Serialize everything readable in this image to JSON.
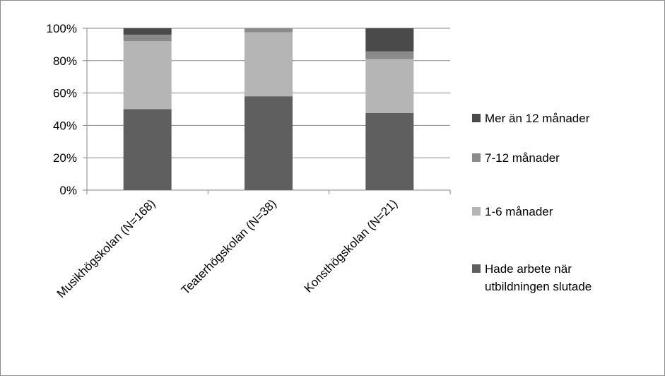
{
  "chart_data": {
    "type": "bar",
    "stacked": true,
    "percent": true,
    "categories": [
      "Musikhögskolan (N=168)",
      "Teaterhögskolan (N=38)",
      "Konsthögskolan (N=21)"
    ],
    "series": [
      {
        "name": "Hade arbete när utbildningen slutade",
        "legend_lines": [
          "Hade arbete när",
          "utbildningen slutade"
        ],
        "values": [
          50,
          58,
          47.6
        ],
        "color": "#5f5f5f"
      },
      {
        "name": "1-6 månader",
        "legend_lines": [
          "1-6 månader"
        ],
        "values": [
          42,
          39.5,
          33.3
        ],
        "color": "#b5b5b5"
      },
      {
        "name": "7-12 månader",
        "legend_lines": [
          "7-12 månader"
        ],
        "values": [
          4,
          2.5,
          4.8
        ],
        "color": "#8a8a8a"
      },
      {
        "name": "Mer än 12 månader",
        "legend_lines": [
          "Mer än 12 månader"
        ],
        "values": [
          4,
          0,
          14.3
        ],
        "color": "#4a4a4a"
      }
    ],
    "yticks": [
      "0%",
      "20%",
      "40%",
      "60%",
      "80%",
      "100%"
    ],
    "ylim": [
      0,
      100
    ],
    "grid": true,
    "legend_position": "right"
  }
}
